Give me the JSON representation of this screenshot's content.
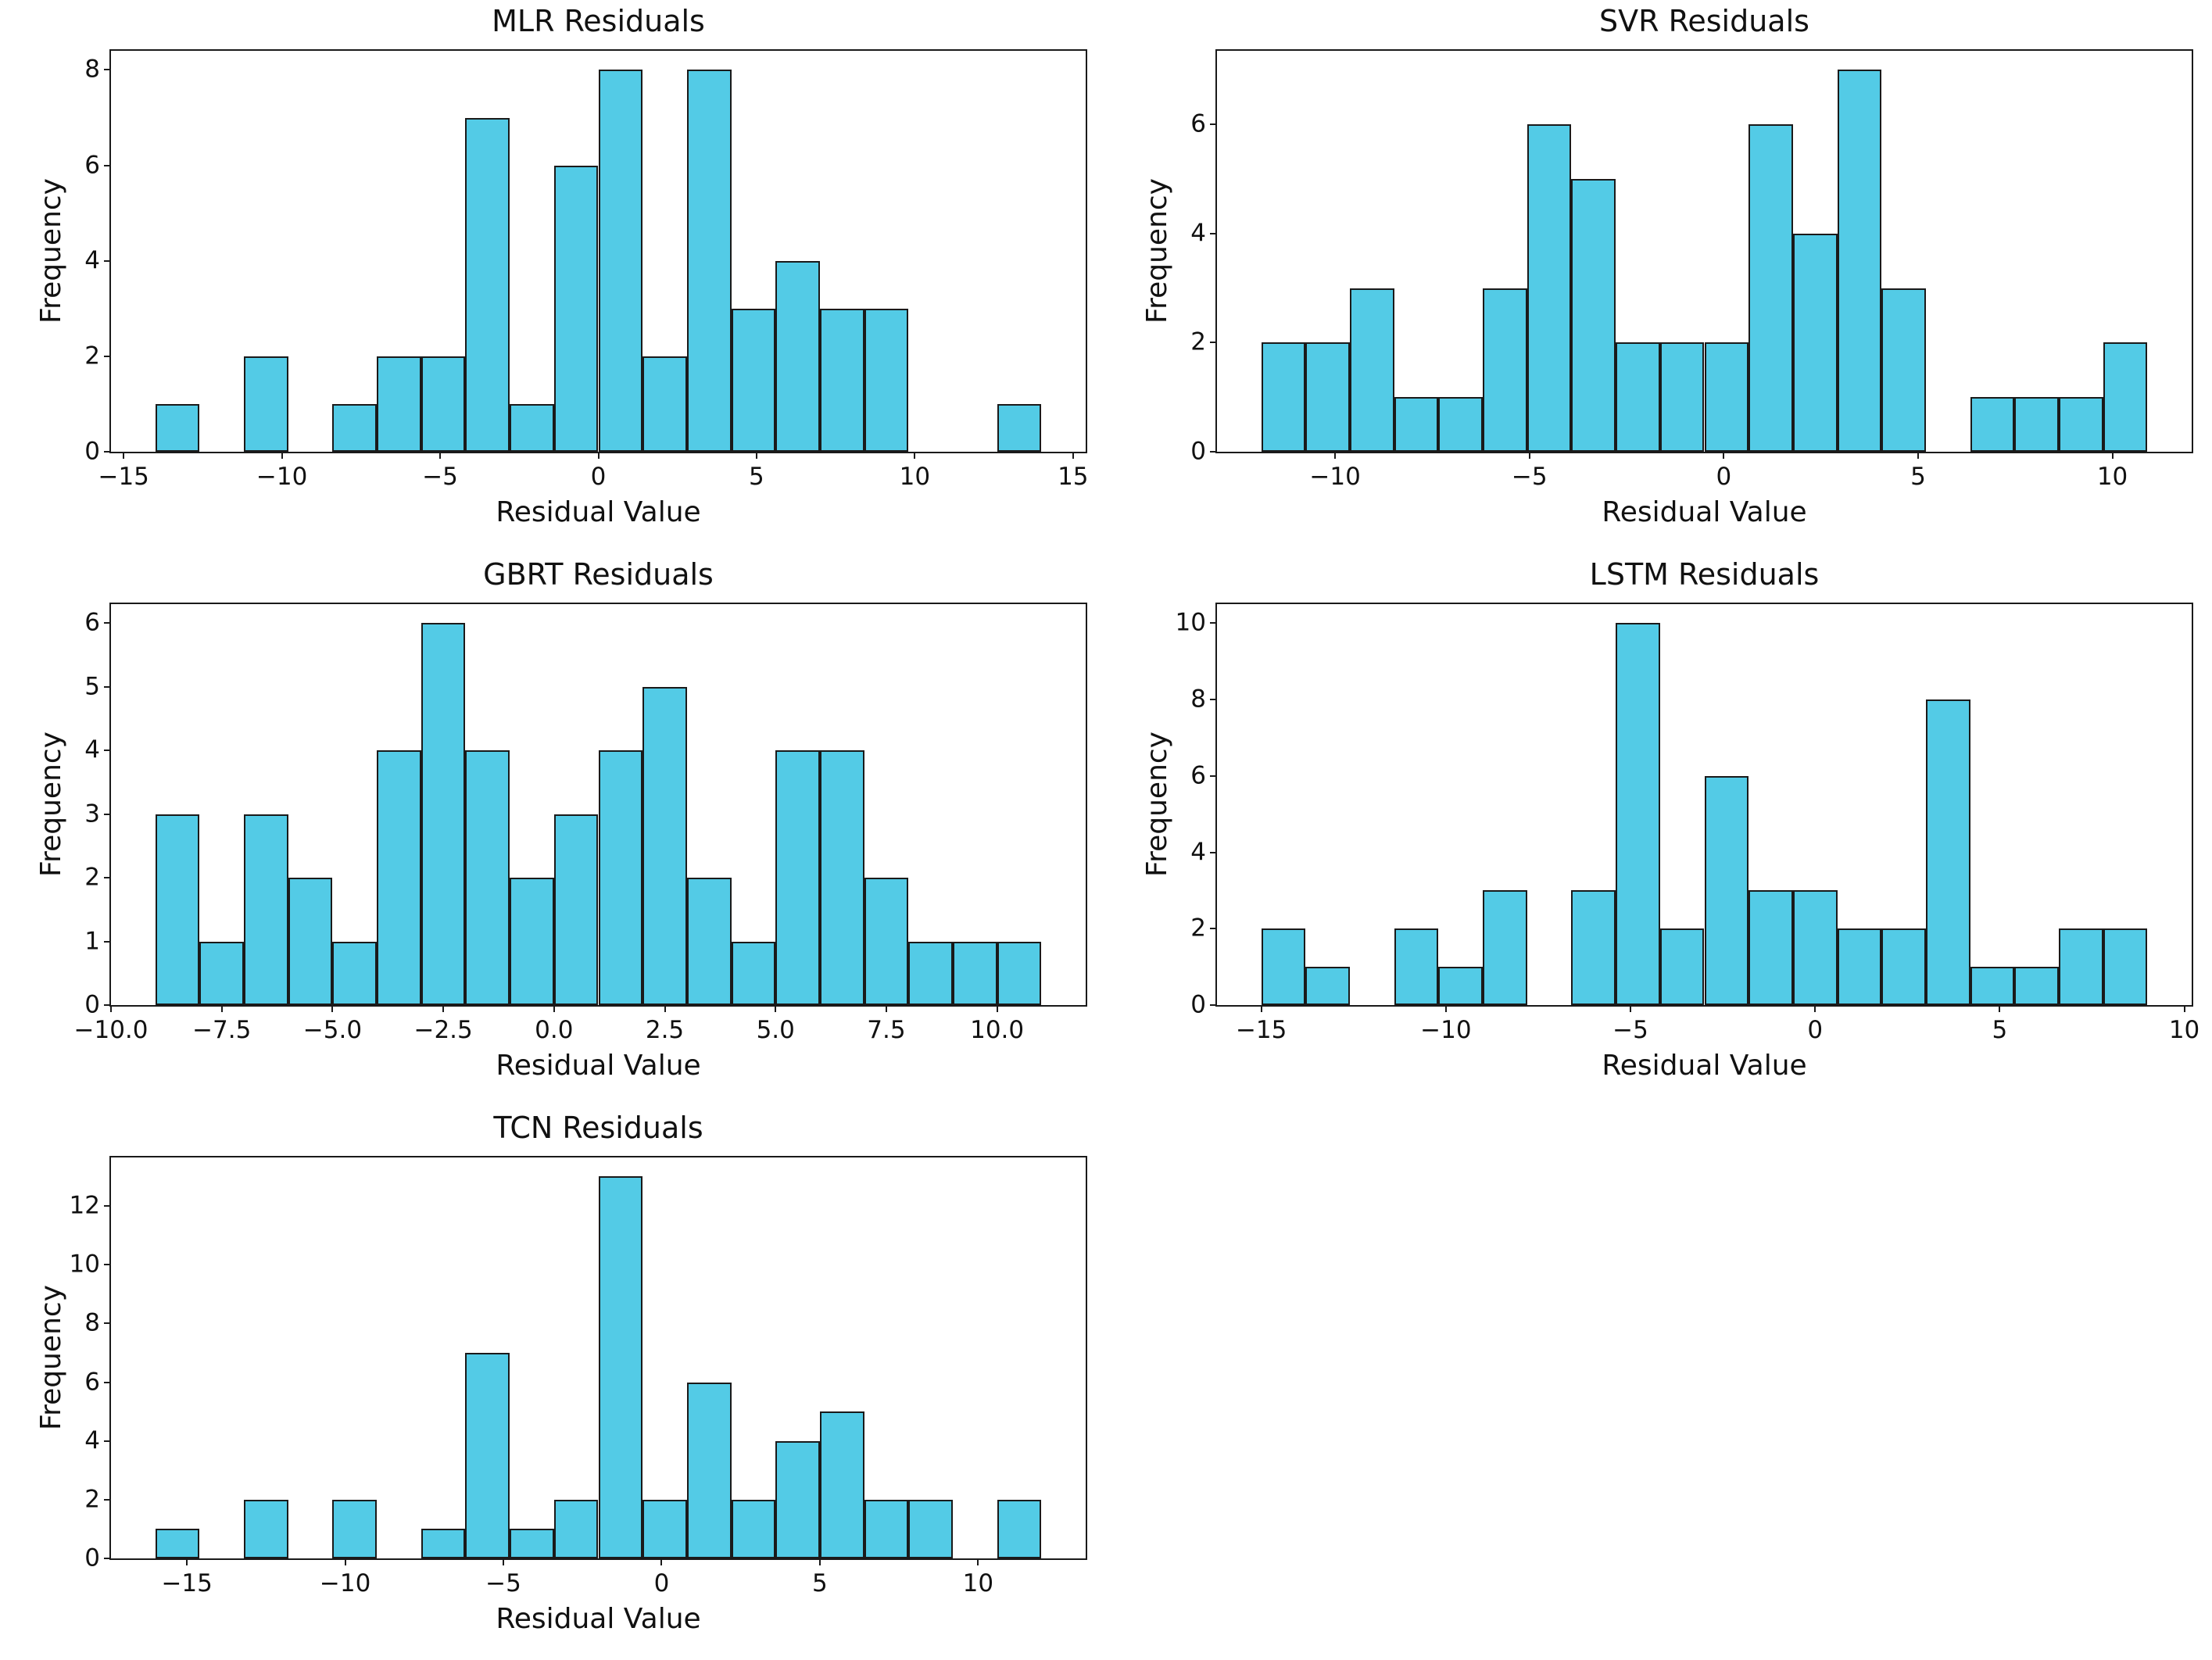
{
  "style": {
    "background": "#ffffff",
    "bar_fill": "#53cbe6",
    "bar_edge": "#1a1a1a",
    "spine_color": "#1a1a1a",
    "text_color": "#111111"
  },
  "chart_data": [
    {
      "id": "mlr",
      "type": "bar",
      "title": "MLR Residuals",
      "xlabel": "Residual Value",
      "ylabel": "Frequency",
      "bin_start": -14.0,
      "bin_width": 1.4,
      "counts": [
        1,
        0,
        2,
        0,
        1,
        2,
        2,
        7,
        1,
        6,
        8,
        2,
        8,
        3,
        4,
        3,
        3,
        0,
        0,
        1
      ],
      "xlim": [
        -15.4,
        15.4
      ],
      "ylim": [
        0,
        8.4
      ],
      "xtick_values": [
        -15,
        -10,
        -5,
        0,
        5,
        10,
        15
      ],
      "xtick_labels": [
        "−15",
        "−10",
        "−5",
        "0",
        "5",
        "10",
        "15"
      ],
      "ytick_values": [
        0,
        2,
        4,
        6,
        8
      ],
      "ytick_labels": [
        "0",
        "2",
        "4",
        "6",
        "8"
      ],
      "grid": false,
      "legend": null
    },
    {
      "id": "svr",
      "type": "bar",
      "title": "SVR Residuals",
      "xlabel": "Residual Value",
      "ylabel": "Frequency",
      "bin_start": -11.9,
      "bin_width": 1.14,
      "counts": [
        2,
        2,
        3,
        1,
        1,
        3,
        6,
        5,
        2,
        2,
        2,
        6,
        4,
        7,
        3,
        0,
        1,
        1,
        1,
        2
      ],
      "xlim": [
        -13.04,
        12.04
      ],
      "ylim": [
        0,
        7.35
      ],
      "xtick_values": [
        -10,
        -5,
        0,
        5,
        10
      ],
      "xtick_labels": [
        "−10",
        "−5",
        "0",
        "5",
        "10"
      ],
      "ytick_values": [
        0,
        2,
        4,
        6
      ],
      "ytick_labels": [
        "0",
        "2",
        "4",
        "6"
      ],
      "grid": false,
      "legend": null
    },
    {
      "id": "gbrt",
      "type": "bar",
      "title": "GBRT Residuals",
      "xlabel": "Residual Value",
      "ylabel": "Frequency",
      "bin_start": -9.0,
      "bin_width": 1.0,
      "counts": [
        3,
        1,
        3,
        2,
        1,
        4,
        6,
        4,
        2,
        3,
        4,
        5,
        2,
        1,
        4,
        4,
        2,
        1,
        1,
        1
      ],
      "xlim": [
        -10.0,
        12.0
      ],
      "ylim": [
        0,
        6.3
      ],
      "xtick_values": [
        -10.0,
        -7.5,
        -5.0,
        -2.5,
        0.0,
        2.5,
        5.0,
        7.5,
        10.0
      ],
      "xtick_labels": [
        "−10.0",
        "−7.5",
        "−5.0",
        "−2.5",
        "0.0",
        "2.5",
        "5.0",
        "7.5",
        "10.0"
      ],
      "ytick_values": [
        0,
        1,
        2,
        3,
        4,
        5,
        6
      ],
      "ytick_labels": [
        "0",
        "1",
        "2",
        "3",
        "4",
        "5",
        "6"
      ],
      "grid": false,
      "legend": null
    },
    {
      "id": "lstm",
      "type": "bar",
      "title": "LSTM Residuals",
      "xlabel": "Residual Value",
      "ylabel": "Frequency",
      "bin_start": -15.0,
      "bin_width": 1.2,
      "counts": [
        2,
        1,
        0,
        2,
        1,
        3,
        0,
        3,
        10,
        2,
        6,
        3,
        3,
        2,
        2,
        8,
        1,
        1,
        2,
        2
      ],
      "xlim": [
        -16.2,
        10.2
      ],
      "ylim": [
        0,
        10.5
      ],
      "xtick_values": [
        -15,
        -10,
        -5,
        0,
        5,
        10
      ],
      "xtick_labels": [
        "−15",
        "−10",
        "−5",
        "0",
        "5",
        "10"
      ],
      "ytick_values": [
        0,
        2,
        4,
        6,
        8,
        10
      ],
      "ytick_labels": [
        "0",
        "2",
        "4",
        "6",
        "8",
        "10"
      ],
      "grid": false,
      "legend": null
    },
    {
      "id": "tcn",
      "type": "bar",
      "title": "TCN Residuals",
      "xlabel": "Residual Value",
      "ylabel": "Frequency",
      "bin_start": -16.0,
      "bin_width": 1.4,
      "counts": [
        1,
        0,
        2,
        0,
        2,
        0,
        1,
        7,
        1,
        2,
        13,
        2,
        6,
        2,
        4,
        5,
        2,
        2,
        0,
        2
      ],
      "xlim": [
        -17.4,
        13.4
      ],
      "ylim": [
        0,
        13.65
      ],
      "xtick_values": [
        -15,
        -10,
        -5,
        0,
        5,
        10
      ],
      "xtick_labels": [
        "−15",
        "−10",
        "−5",
        "0",
        "5",
        "10"
      ],
      "ytick_values": [
        0,
        2,
        4,
        6,
        8,
        10,
        12
      ],
      "ytick_labels": [
        "0",
        "2",
        "4",
        "6",
        "8",
        "10",
        "12"
      ],
      "grid": false,
      "legend": null
    }
  ]
}
